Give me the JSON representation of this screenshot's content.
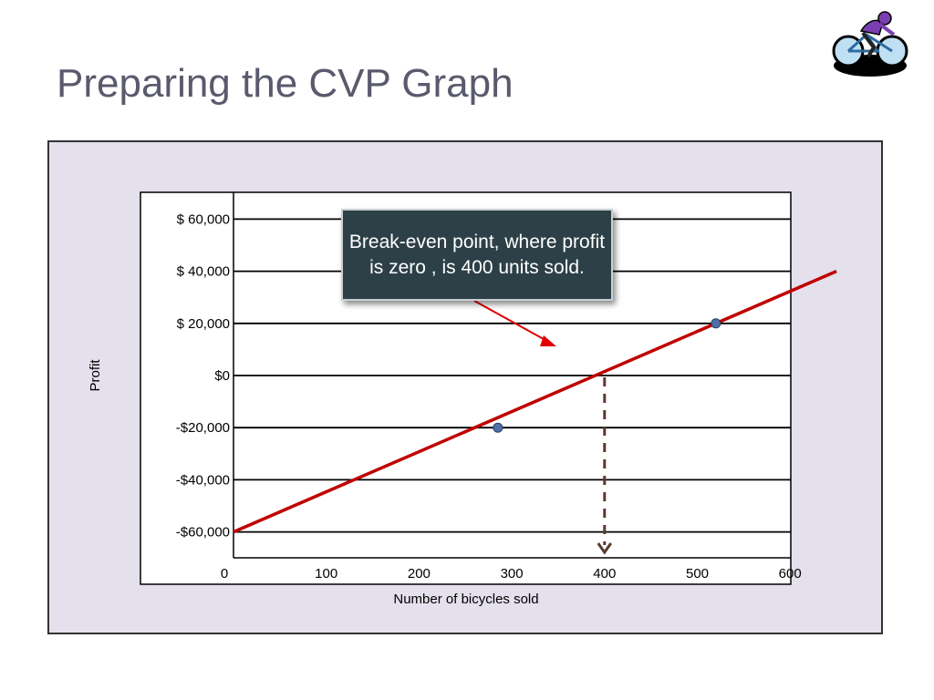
{
  "slide": {
    "title": "Preparing the CVP Graph",
    "icon": "cyclist-clipart-icon"
  },
  "colors": {
    "panel_bg": "#e4e0ec",
    "profit_line": "#c00000",
    "marker": "#4f6fa8",
    "callout_bg": "#2d4048",
    "dashed_arrow": "#5a3a30"
  },
  "chart_data": {
    "type": "line",
    "title": "",
    "xlabel": "Number of bicycles sold",
    "ylabel": "Profit",
    "xlim": [
      0,
      650
    ],
    "ylim": [
      -70000,
      70000
    ],
    "x_ticks": [
      0,
      100,
      200,
      300,
      400,
      500,
      600
    ],
    "x_tick_labels": [
      "0",
      "100",
      "200",
      "300",
      "400",
      "500",
      "600"
    ],
    "y_ticks": [
      60000,
      40000,
      20000,
      0,
      -20000,
      -40000,
      -60000
    ],
    "y_tick_labels": [
      "$  60,000",
      "$  40,000",
      "$  20,000",
      "$0",
      "-$20,000",
      "-$40,000",
      "-$60,000"
    ],
    "grid": true,
    "series": [
      {
        "x": [
          0,
          650
        ],
        "y": [
          -60000,
          40000
        ]
      }
    ],
    "markers": [
      {
        "x": 285,
        "y": -20000
      },
      {
        "x": 520,
        "y": 20000
      }
    ],
    "break_even": {
      "x": 400,
      "y": 0
    },
    "annotation": "Break-even point, where profit is zero , is 400 units sold."
  }
}
